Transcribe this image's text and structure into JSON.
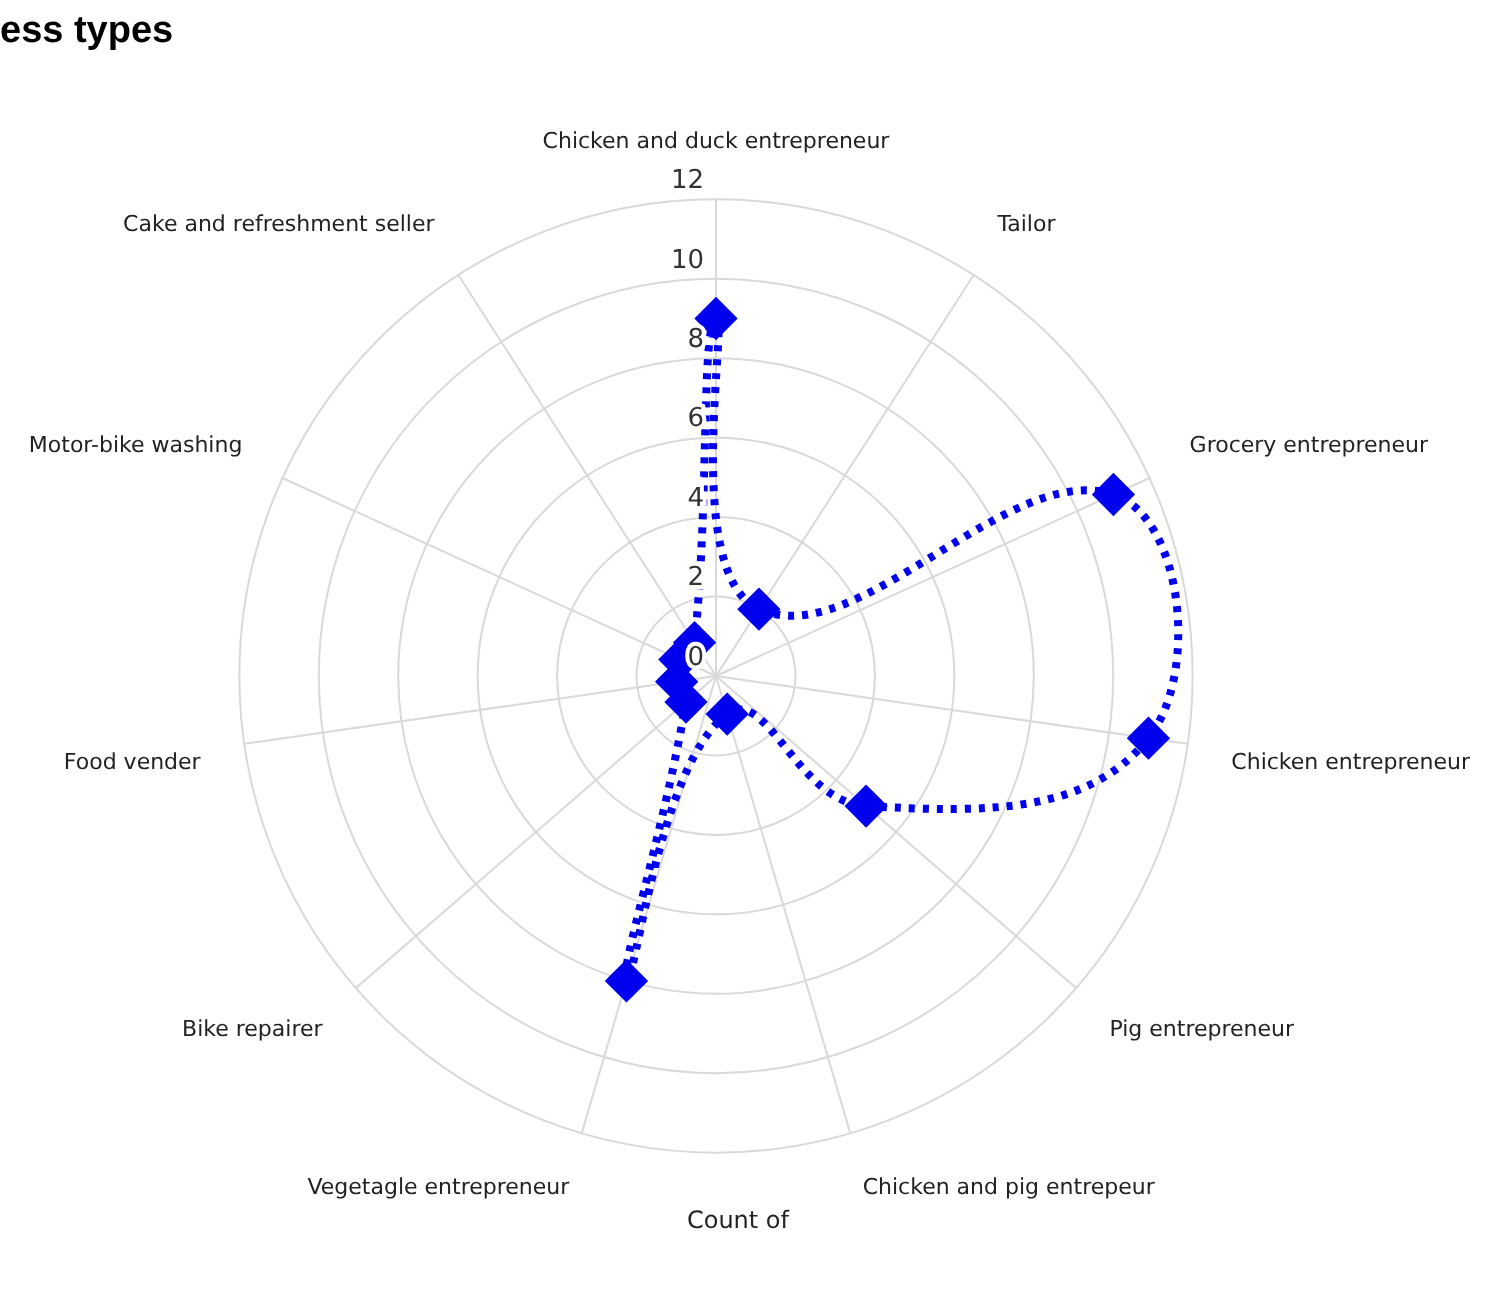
{
  "chart_data": {
    "type": "radar",
    "title": "ess types",
    "categories": [
      "Chicken and duck entrepreneur",
      "Tailor",
      "Grocery entrepreneur",
      "Chicken entrepreneur",
      "Pig entrepreneur",
      "Chicken and pig entrepeur",
      "Vegetagle entrepreneur",
      "Bike repairer",
      "Food vender",
      "Motor-bike washing",
      "Cake and refreshment seller"
    ],
    "series": [
      {
        "color": "#0000ee",
        "values": [
          9,
          2,
          11,
          11,
          5,
          1,
          8,
          1,
          1,
          1,
          1
        ]
      }
    ],
    "ylim": [
      0,
      12
    ],
    "yticks": [
      0,
      2,
      4,
      6,
      8,
      10,
      12
    ],
    "grid": true,
    "marker": "diamond",
    "line_style": "dotted",
    "annotations": [
      "Count of"
    ]
  }
}
